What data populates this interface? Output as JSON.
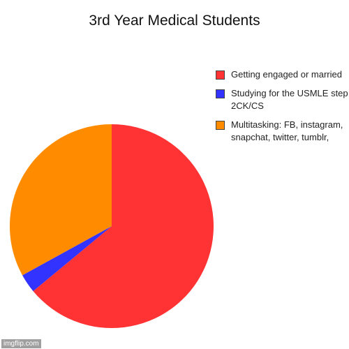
{
  "chart_data": {
    "type": "pie",
    "title": "3rd Year Medical Students",
    "slices": [
      {
        "label": "Getting engaged or married",
        "value": 64,
        "color": "#ff3333"
      },
      {
        "label": "Studying for the USMLE step 2CK/CS",
        "value": 3,
        "color": "#3333ff"
      },
      {
        "label": "Multitasking: FB, instagram, snapchat, twitter, tumblr,",
        "value": 33,
        "color": "#ff8c00"
      }
    ],
    "legend_position": "top-right"
  },
  "watermark": "imgflip.com"
}
